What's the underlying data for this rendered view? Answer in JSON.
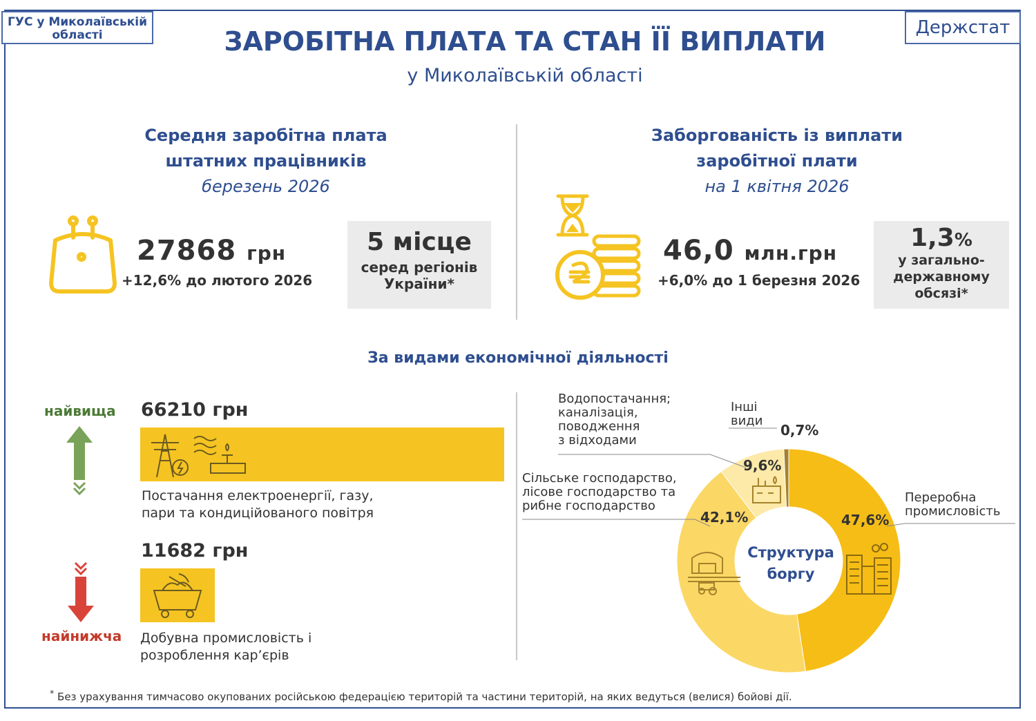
{
  "header": {
    "org": "ГУС у Миколаївській області",
    "brand": "Держстат",
    "title": "ЗАРОБІТНА ПЛАТА ТА СТАН ЇЇ ВИПЛАТИ",
    "subtitle": "у Миколаївській області"
  },
  "salary": {
    "heading_line1": "Середня заробітна плата",
    "heading_line2": "штатних працівників",
    "period": "березень 2026",
    "value": "27868",
    "unit": "грн",
    "change": "+12,6%  до лютого 2026",
    "rank_value": "5 місце",
    "rank_text1": "серед регіонів",
    "rank_text2": "України*"
  },
  "debt": {
    "heading_line1": "Заборгованість із виплати",
    "heading_line2": "заробітної плати",
    "period": "на 1 квітня 2026",
    "value": "46,0",
    "unit": "млн.грн",
    "change": "+6,0%  до 1 березня 2026",
    "share_value": "1,3",
    "share_unit": "%",
    "share_text1": "у загально-",
    "share_text2": "державному",
    "share_text3": "обсязі*"
  },
  "activities": {
    "heading": "За видами економічної діяльності",
    "highest_label": "найвища",
    "highest_value": "66210 грн",
    "highest_text1": "Постачання електроенергії, газу,",
    "highest_text2": "пари та кондиційованого повітря",
    "lowest_label": "найнижча",
    "lowest_value": "11682 грн",
    "lowest_text1": "Добувна промисловість і",
    "lowest_text2": "розроблення кар’єрів"
  },
  "chart_data": {
    "type": "pie",
    "title": "Структура боргу",
    "center_line1": "Структура",
    "center_line2": "боргу",
    "slices": [
      {
        "label": "Переробна промисловість",
        "lines": [
          "Переробна",
          "промисловість"
        ],
        "value": 47.6,
        "display": "47,6%",
        "color": "#f6bd16"
      },
      {
        "label": "Сільське господарство, лісове господарство та рибне господарство",
        "lines": [
          "Сільське господарство,",
          "лісове господарство та",
          "рибне господарство"
        ],
        "value": 42.1,
        "display": "42,1%",
        "color": "#fbd765"
      },
      {
        "label": "Водопостачання; каналізація, поводження з відходами",
        "lines": [
          "Водопостачання;",
          "каналізація,",
          "поводження",
          "з відходами"
        ],
        "value": 9.6,
        "display": "9,6%",
        "color": "#fde9a8"
      },
      {
        "label": "Інші види",
        "lines": [
          "Інші",
          "види"
        ],
        "value": 0.7,
        "display": "0,7%",
        "color": "#a5822a"
      }
    ]
  },
  "footnote": "Без урахування тимчасово окупованих російською федерацією територій та частини територій, на яких ведуться (велися) бойові дії.",
  "colors": {
    "accent": "#2e4e8f",
    "yellow": "#f5c422",
    "green": "#7aa35a",
    "red": "#d9443a"
  }
}
